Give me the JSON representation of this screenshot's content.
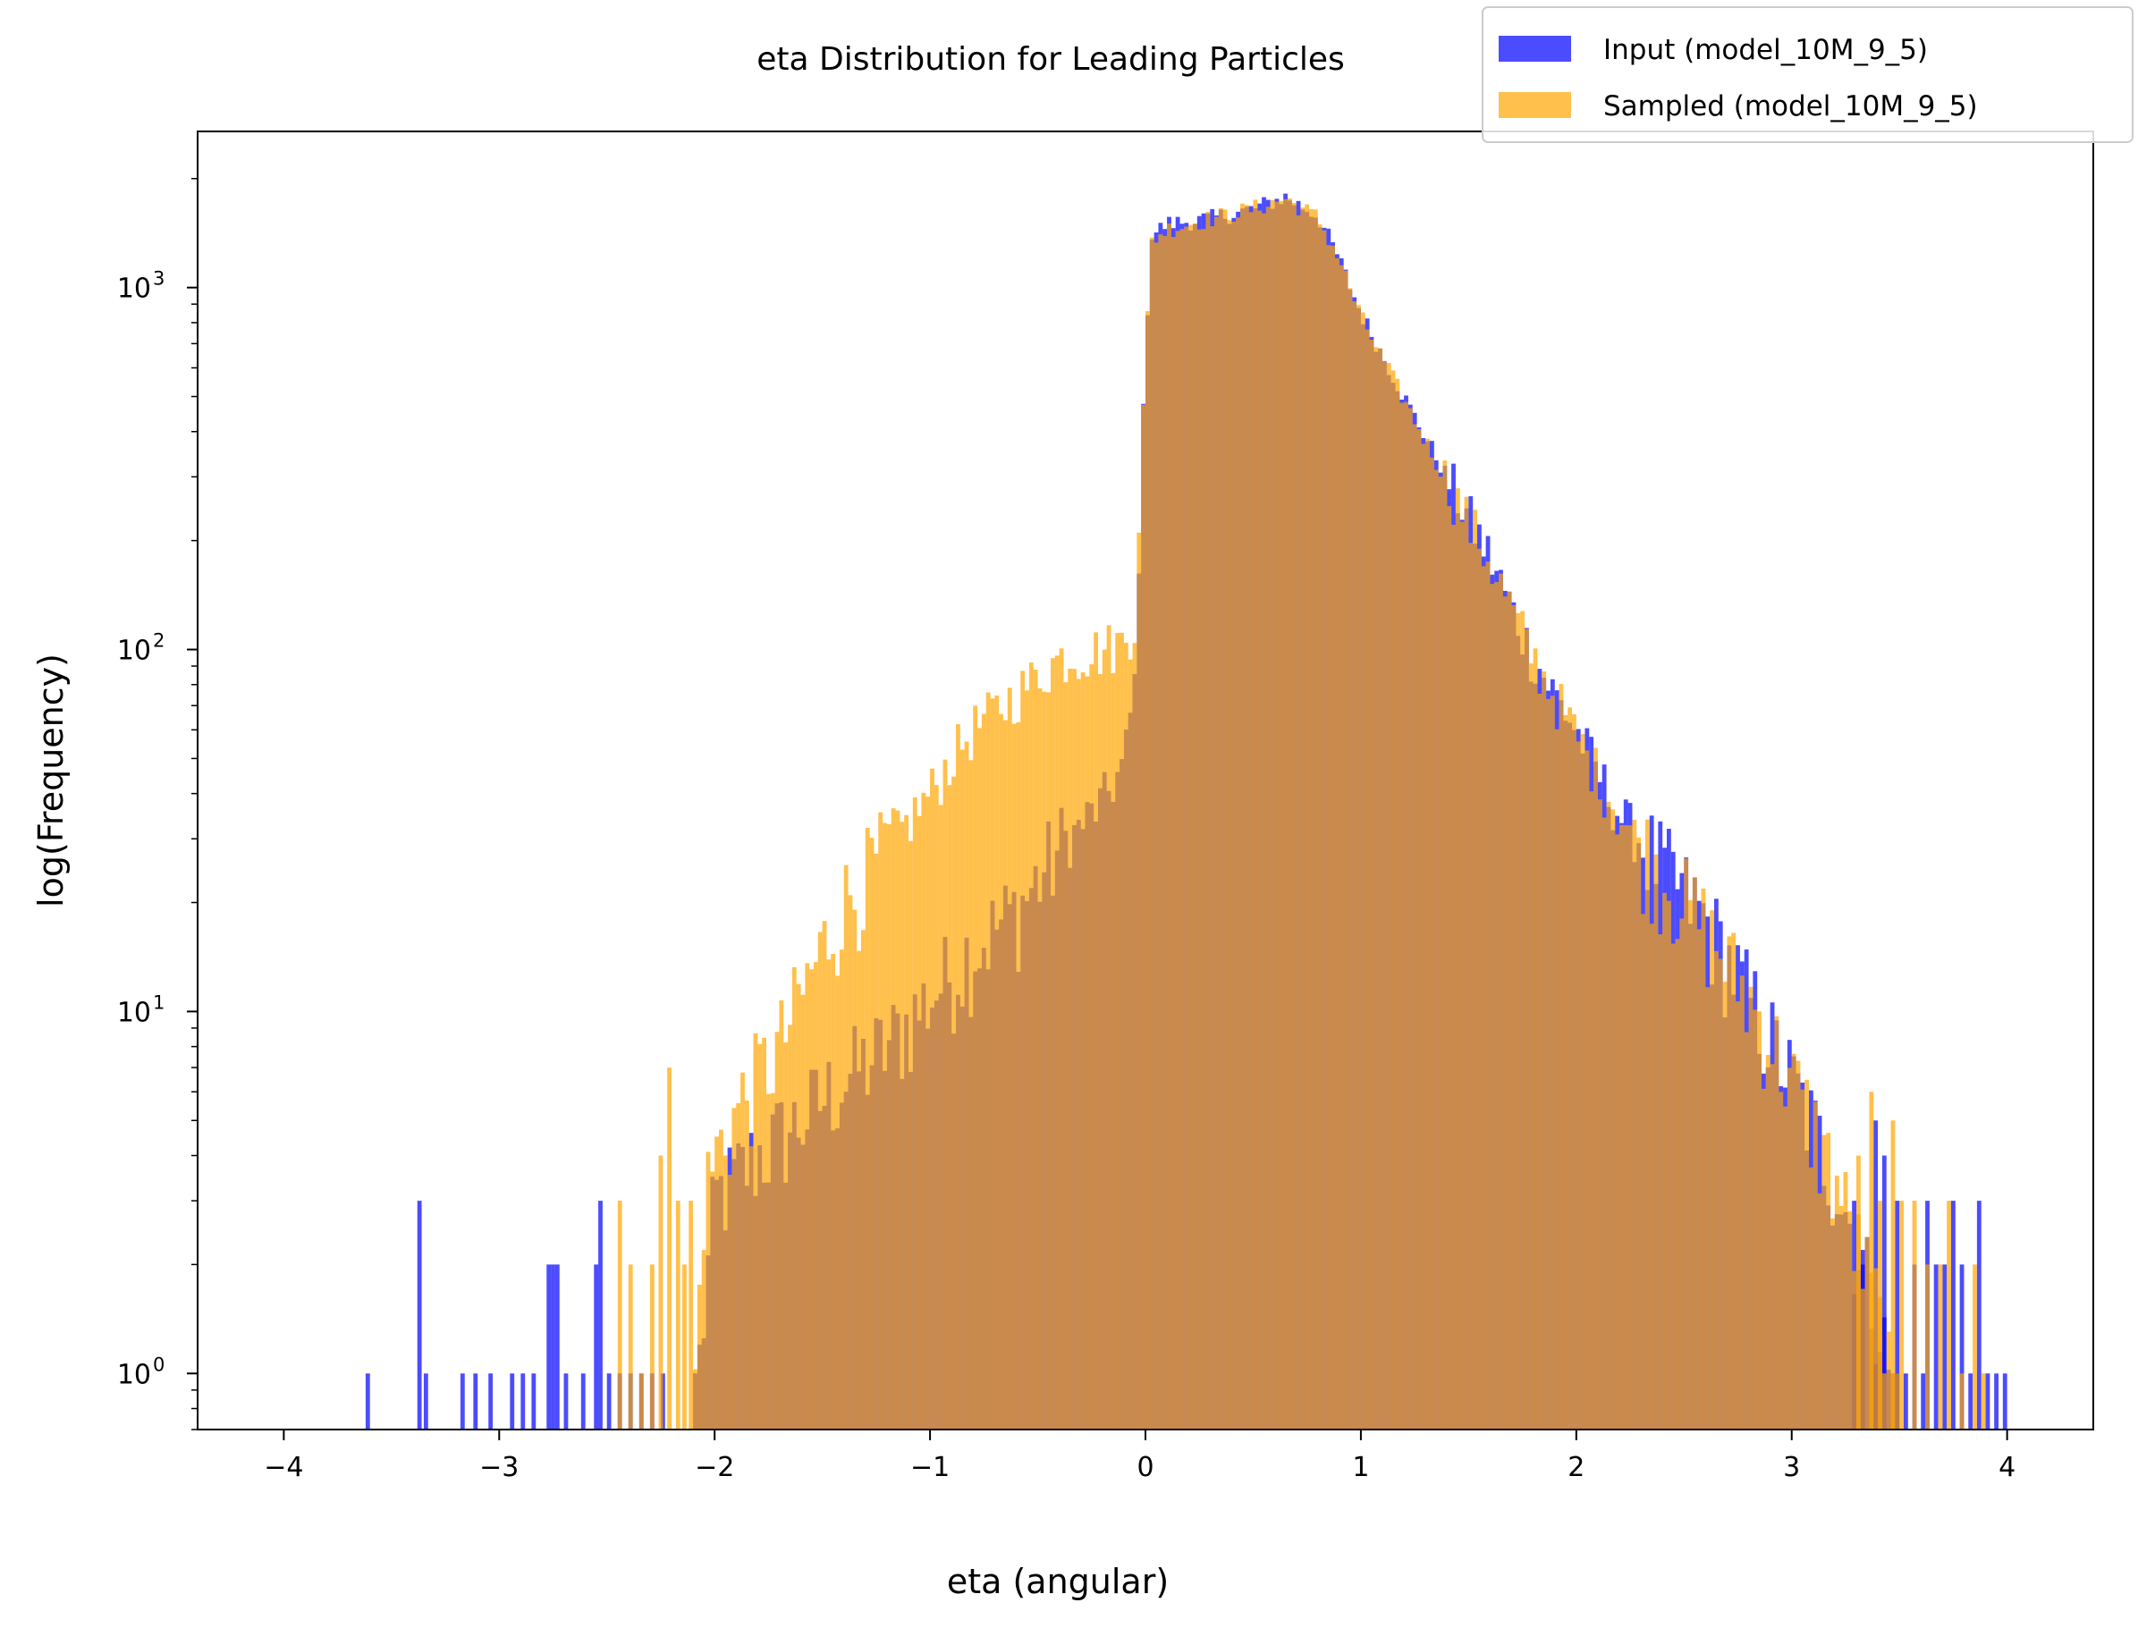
{
  "chart_data": {
    "type": "histogram",
    "title": "eta Distribution for Leading Particles",
    "xlabel": "eta (angular)",
    "ylabel": "log(Frequency)",
    "xlim": [
      -4.4,
      4.4
    ],
    "ylim": [
      0.7,
      2700
    ],
    "yscale": "log",
    "grid": false,
    "legend_position": "top-right",
    "x_ticks": [
      "−4",
      "−3",
      "−2",
      "−1",
      "0",
      "1",
      "2",
      "3",
      "4"
    ],
    "x_tick_values": [
      -4,
      -3,
      -2,
      -1,
      0,
      1,
      2,
      3,
      4
    ],
    "y_tick_values": [
      1,
      10,
      100,
      1000
    ],
    "bin_width": 0.02,
    "series": [
      {
        "name": "Input (model_10M_9_5)",
        "color": "#0000ff",
        "opacity": 0.7,
        "profile": [
          [
            -2.1,
            0.7
          ],
          [
            -2.0,
            3
          ],
          [
            -1.8,
            4
          ],
          [
            -1.6,
            5
          ],
          [
            -1.4,
            6.5
          ],
          [
            -1.2,
            8
          ],
          [
            -1.0,
            11
          ],
          [
            -0.8,
            15
          ],
          [
            -0.6,
            19
          ],
          [
            -0.4,
            28
          ],
          [
            -0.2,
            38
          ],
          [
            -0.1,
            48
          ],
          [
            -0.05,
            80
          ],
          [
            0.0,
            700
          ],
          [
            0.03,
            1400
          ],
          [
            0.1,
            1500
          ],
          [
            0.3,
            1550
          ],
          [
            0.5,
            1650
          ],
          [
            0.65,
            1780
          ],
          [
            0.8,
            1580
          ],
          [
            0.9,
            1200
          ],
          [
            1.0,
            850
          ],
          [
            1.2,
            500
          ],
          [
            1.4,
            300
          ],
          [
            1.6,
            180
          ],
          [
            1.8,
            95
          ],
          [
            2.0,
            60
          ],
          [
            2.2,
            35
          ],
          [
            2.4,
            25
          ],
          [
            2.6,
            18
          ],
          [
            2.8,
            11
          ],
          [
            3.0,
            6.5
          ],
          [
            3.2,
            3.5
          ],
          [
            3.4,
            1.5
          ],
          [
            3.5,
            0.7
          ]
        ],
        "scattered_bins": [
          [
            -3.62,
            1
          ],
          [
            -3.38,
            3
          ],
          [
            -3.35,
            1
          ],
          [
            -3.18,
            1
          ],
          [
            -3.12,
            1
          ],
          [
            -3.05,
            1
          ],
          [
            -2.95,
            1
          ],
          [
            -2.9,
            1
          ],
          [
            -2.85,
            1
          ],
          [
            -2.78,
            2
          ],
          [
            -2.76,
            2
          ],
          [
            -2.74,
            2
          ],
          [
            -2.7,
            1
          ],
          [
            -2.62,
            1
          ],
          [
            -2.56,
            2
          ],
          [
            -2.54,
            3
          ],
          [
            -2.5,
            1
          ],
          [
            -2.45,
            1
          ],
          [
            -2.4,
            1
          ],
          [
            -2.35,
            1
          ],
          [
            -2.3,
            1
          ],
          [
            -2.25,
            1
          ],
          [
            3.28,
            3
          ],
          [
            3.32,
            2
          ],
          [
            3.38,
            5
          ],
          [
            3.42,
            4
          ],
          [
            3.48,
            3
          ],
          [
            3.52,
            1
          ],
          [
            3.56,
            2
          ],
          [
            3.6,
            1
          ],
          [
            3.62,
            3
          ],
          [
            3.66,
            2
          ],
          [
            3.7,
            2
          ],
          [
            3.74,
            3
          ],
          [
            3.78,
            2
          ],
          [
            3.82,
            1
          ],
          [
            3.86,
            3
          ],
          [
            3.9,
            1
          ],
          [
            3.94,
            1
          ],
          [
            3.98,
            1
          ]
        ]
      },
      {
        "name": "Sampled (model_10M_9_5)",
        "color": "#ffa500",
        "opacity": 0.7,
        "profile": [
          [
            -2.1,
            0.7
          ],
          [
            -2.05,
            3
          ],
          [
            -2.0,
            4
          ],
          [
            -1.85,
            6
          ],
          [
            -1.7,
            8
          ],
          [
            -1.5,
            15
          ],
          [
            -1.4,
            20
          ],
          [
            -1.2,
            28
          ],
          [
            -1.0,
            40
          ],
          [
            -0.9,
            50
          ],
          [
            -0.8,
            60
          ],
          [
            -0.6,
            75
          ],
          [
            -0.4,
            95
          ],
          [
            -0.2,
            100
          ],
          [
            -0.1,
            105
          ],
          [
            -0.05,
            120
          ],
          [
            0.0,
            650
          ],
          [
            0.03,
            1350
          ],
          [
            0.1,
            1450
          ],
          [
            0.3,
            1550
          ],
          [
            0.5,
            1650
          ],
          [
            0.65,
            1760
          ],
          [
            0.8,
            1560
          ],
          [
            0.9,
            1200
          ],
          [
            1.0,
            830
          ],
          [
            1.2,
            490
          ],
          [
            1.4,
            290
          ],
          [
            1.6,
            175
          ],
          [
            1.8,
            95
          ],
          [
            2.0,
            58
          ],
          [
            2.2,
            35
          ],
          [
            2.4,
            24
          ],
          [
            2.6,
            17
          ],
          [
            2.8,
            11
          ],
          [
            3.0,
            6.5
          ],
          [
            3.2,
            3.5
          ],
          [
            3.4,
            1.5
          ],
          [
            3.5,
            0.7
          ]
        ],
        "scattered_bins": [
          [
            -2.45,
            3
          ],
          [
            -2.4,
            2
          ],
          [
            -2.35,
            1
          ],
          [
            -2.3,
            2
          ],
          [
            -2.26,
            4
          ],
          [
            -2.22,
            7
          ],
          [
            -2.18,
            3
          ],
          [
            -2.15,
            2
          ],
          [
            -2.12,
            3
          ],
          [
            3.3,
            4
          ],
          [
            3.36,
            6
          ],
          [
            3.4,
            3
          ],
          [
            3.46,
            5
          ],
          [
            3.5,
            3
          ],
          [
            3.56,
            3
          ],
          [
            3.62,
            2
          ],
          [
            3.68,
            2
          ],
          [
            3.72,
            3
          ],
          [
            3.78,
            1
          ],
          [
            3.84,
            2
          ],
          [
            3.88,
            1
          ]
        ]
      }
    ]
  }
}
